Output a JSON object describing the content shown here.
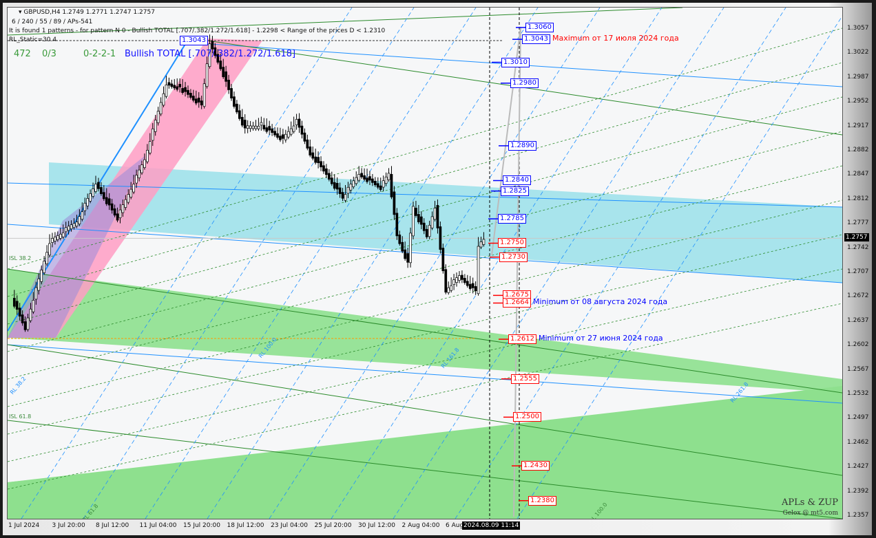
{
  "header": {
    "symbol_line": "GBPUSD,H4  1.2749 1.2771 1.2747 1.2757",
    "params": "6 / 240 / 55 / 89 / APs-541",
    "pattern_info": "It is found 1 patterns  -  for pattern N 0 - Bullish TOTAL [.707/.382/1.272/1.618] - 1.2298 < Range of the prices D < 1.2310",
    "rl_static": "RL_Static=30.4",
    "count1": "472",
    "count2": "0/3",
    "count3": "0-2-2-1",
    "pattern_name": "Bullish TOTAL [.707/.382/1.272/1.618]",
    "peak_label": "1.3043"
  },
  "watermark": {
    "line1": "APLs & ZUP",
    "line2": "Gelox @ mt5.com"
  },
  "colors": {
    "bull_band": "#ff9ec4",
    "channel_cyan": "#a8e4ec",
    "channel_green": "#8ee08e",
    "blue_line": "#1e90ff",
    "green_line": "#2a8a2a",
    "support": "#ff0000",
    "resistance": "#0000ff"
  },
  "chart_data": {
    "type": "candlestick",
    "symbol": "GBPUSD",
    "timeframe": "H4",
    "last_bar": {
      "open": 1.2749,
      "high": 1.2771,
      "low": 1.2747,
      "close": 1.2757
    },
    "current_price": "1.2757",
    "crosshair_time": "2024.08.09 11:14",
    "ylim": [
      1.2345,
      1.3085
    ],
    "y_ticks": [
      "1.3057",
      "1.3022",
      "1.2987",
      "1.2952",
      "1.2917",
      "1.2882",
      "1.2847",
      "1.2812",
      "1.2777",
      "1.2742",
      "1.2707",
      "1.2672",
      "1.2637",
      "1.2602",
      "1.2567",
      "1.2532",
      "1.2497",
      "1.2462",
      "1.2427",
      "1.2392",
      "1.2357"
    ],
    "x_ticks": [
      "1 Jul 2024",
      "3 Jul 20:00",
      "8 Jul 12:00",
      "11 Jul 04:00",
      "15 Jul 20:00",
      "18 Jul 12:00",
      "23 Jul 04:00",
      "25 Jul 20:00",
      "30 Jul 12:00",
      "2 Aug 04:00",
      "6 Aug"
    ],
    "price_path": [
      [
        "2024-07-01 08:00",
        1.2673
      ],
      [
        "2024-07-02 04:00",
        1.2629
      ],
      [
        "2024-07-03 16:00",
        1.2752
      ],
      [
        "2024-07-05 08:00",
        1.2782
      ],
      [
        "2024-07-08 12:00",
        1.2837
      ],
      [
        "2024-07-09 20:00",
        1.2787
      ],
      [
        "2024-07-11 12:00",
        1.2871
      ],
      [
        "2024-07-12 20:00",
        1.298
      ],
      [
        "2024-07-15 16:00",
        1.2975
      ],
      [
        "2024-07-17 00:00",
        1.295
      ],
      [
        "2024-07-17 12:00",
        1.3039
      ],
      [
        "2024-07-18 04:00",
        1.3005
      ],
      [
        "2024-07-19 00:00",
        1.295
      ],
      [
        "2024-07-19 16:00",
        1.2916
      ],
      [
        "2024-07-22 16:00",
        1.2921
      ],
      [
        "2024-07-24 00:00",
        1.2901
      ],
      [
        "2024-07-24 20:00",
        1.2926
      ],
      [
        "2024-07-25 16:00",
        1.2881
      ],
      [
        "2024-07-26 12:00",
        1.2856
      ],
      [
        "2024-07-29 16:00",
        1.2817
      ],
      [
        "2024-07-30 16:00",
        1.2851
      ],
      [
        "2024-08-01 00:00",
        1.2832
      ],
      [
        "2024-08-01 12:00",
        1.2851
      ],
      [
        "2024-08-02 00:00",
        1.2762
      ],
      [
        "2024-08-02 16:00",
        1.2723
      ],
      [
        "2024-08-05 00:00",
        1.2802
      ],
      [
        "2024-08-05 20:00",
        1.2762
      ],
      [
        "2024-08-06 08:00",
        1.2802
      ],
      [
        "2024-08-07 00:00",
        1.2683
      ],
      [
        "2024-08-07 20:00",
        1.2703
      ],
      [
        "2024-08-08 20:00",
        1.2683
      ],
      [
        "2024-08-09 00:00",
        1.2748
      ],
      [
        "2024-08-09 08:00",
        1.2757
      ]
    ],
    "levels": [
      {
        "price": "1.3060",
        "kind": "resistance"
      },
      {
        "price": "1.3043",
        "kind": "resistance",
        "note": "Maximum от 17 июля 2024 года"
      },
      {
        "price": "1.3010",
        "kind": "resistance"
      },
      {
        "price": "1.2980",
        "kind": "resistance"
      },
      {
        "price": "1.2890",
        "kind": "resistance"
      },
      {
        "price": "1.2840",
        "kind": "resistance"
      },
      {
        "price": "1.2825",
        "kind": "resistance"
      },
      {
        "price": "1.2785",
        "kind": "resistance"
      },
      {
        "price": "1.2750",
        "kind": "support"
      },
      {
        "price": "1.2730",
        "kind": "support"
      },
      {
        "price": "1.2675",
        "kind": "support"
      },
      {
        "price": "1.2664",
        "kind": "support",
        "note": "Minimum от 08 августа 2024 года"
      },
      {
        "price": "1.2612",
        "kind": "support",
        "note": "Minimum от 27 июня 2024 года"
      },
      {
        "price": "1.2555",
        "kind": "support"
      },
      {
        "price": "1.2500",
        "kind": "support"
      },
      {
        "price": "1.2430",
        "kind": "support"
      },
      {
        "price": "1.2380",
        "kind": "support"
      }
    ],
    "line_labels": [
      "ISL 38.2",
      "ISL 61.8",
      "RL 38.2",
      "RL 61.8",
      "RL 100.0",
      "RL 161.8",
      "RL 261.8",
      "RL 100.0"
    ]
  }
}
